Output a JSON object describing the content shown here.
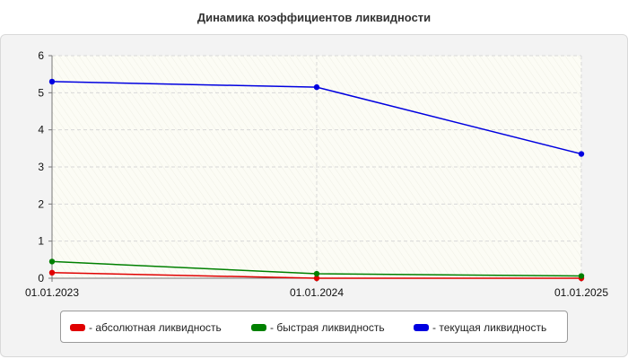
{
  "chart_data": {
    "type": "line",
    "title": "Динамика коэффициентов ликвидности",
    "x": [
      "01.01.2023",
      "01.01.2024",
      "01.01.2025"
    ],
    "ylim": [
      0,
      6
    ],
    "yticks": [
      "0",
      "1",
      "2",
      "3",
      "4",
      "5",
      "6"
    ],
    "grid": true,
    "legend_position": "bottom",
    "series": [
      {
        "name": "- абсолютная ликвидность",
        "color": "#e00000",
        "values": [
          0.15,
          0.0,
          0.0
        ]
      },
      {
        "name": "- быстрая ликвидность",
        "color": "#008000",
        "values": [
          0.45,
          0.12,
          0.06
        ]
      },
      {
        "name": "- текущая ликвидность",
        "color": "#0000e0",
        "values": [
          5.3,
          5.15,
          3.35
        ]
      }
    ]
  }
}
